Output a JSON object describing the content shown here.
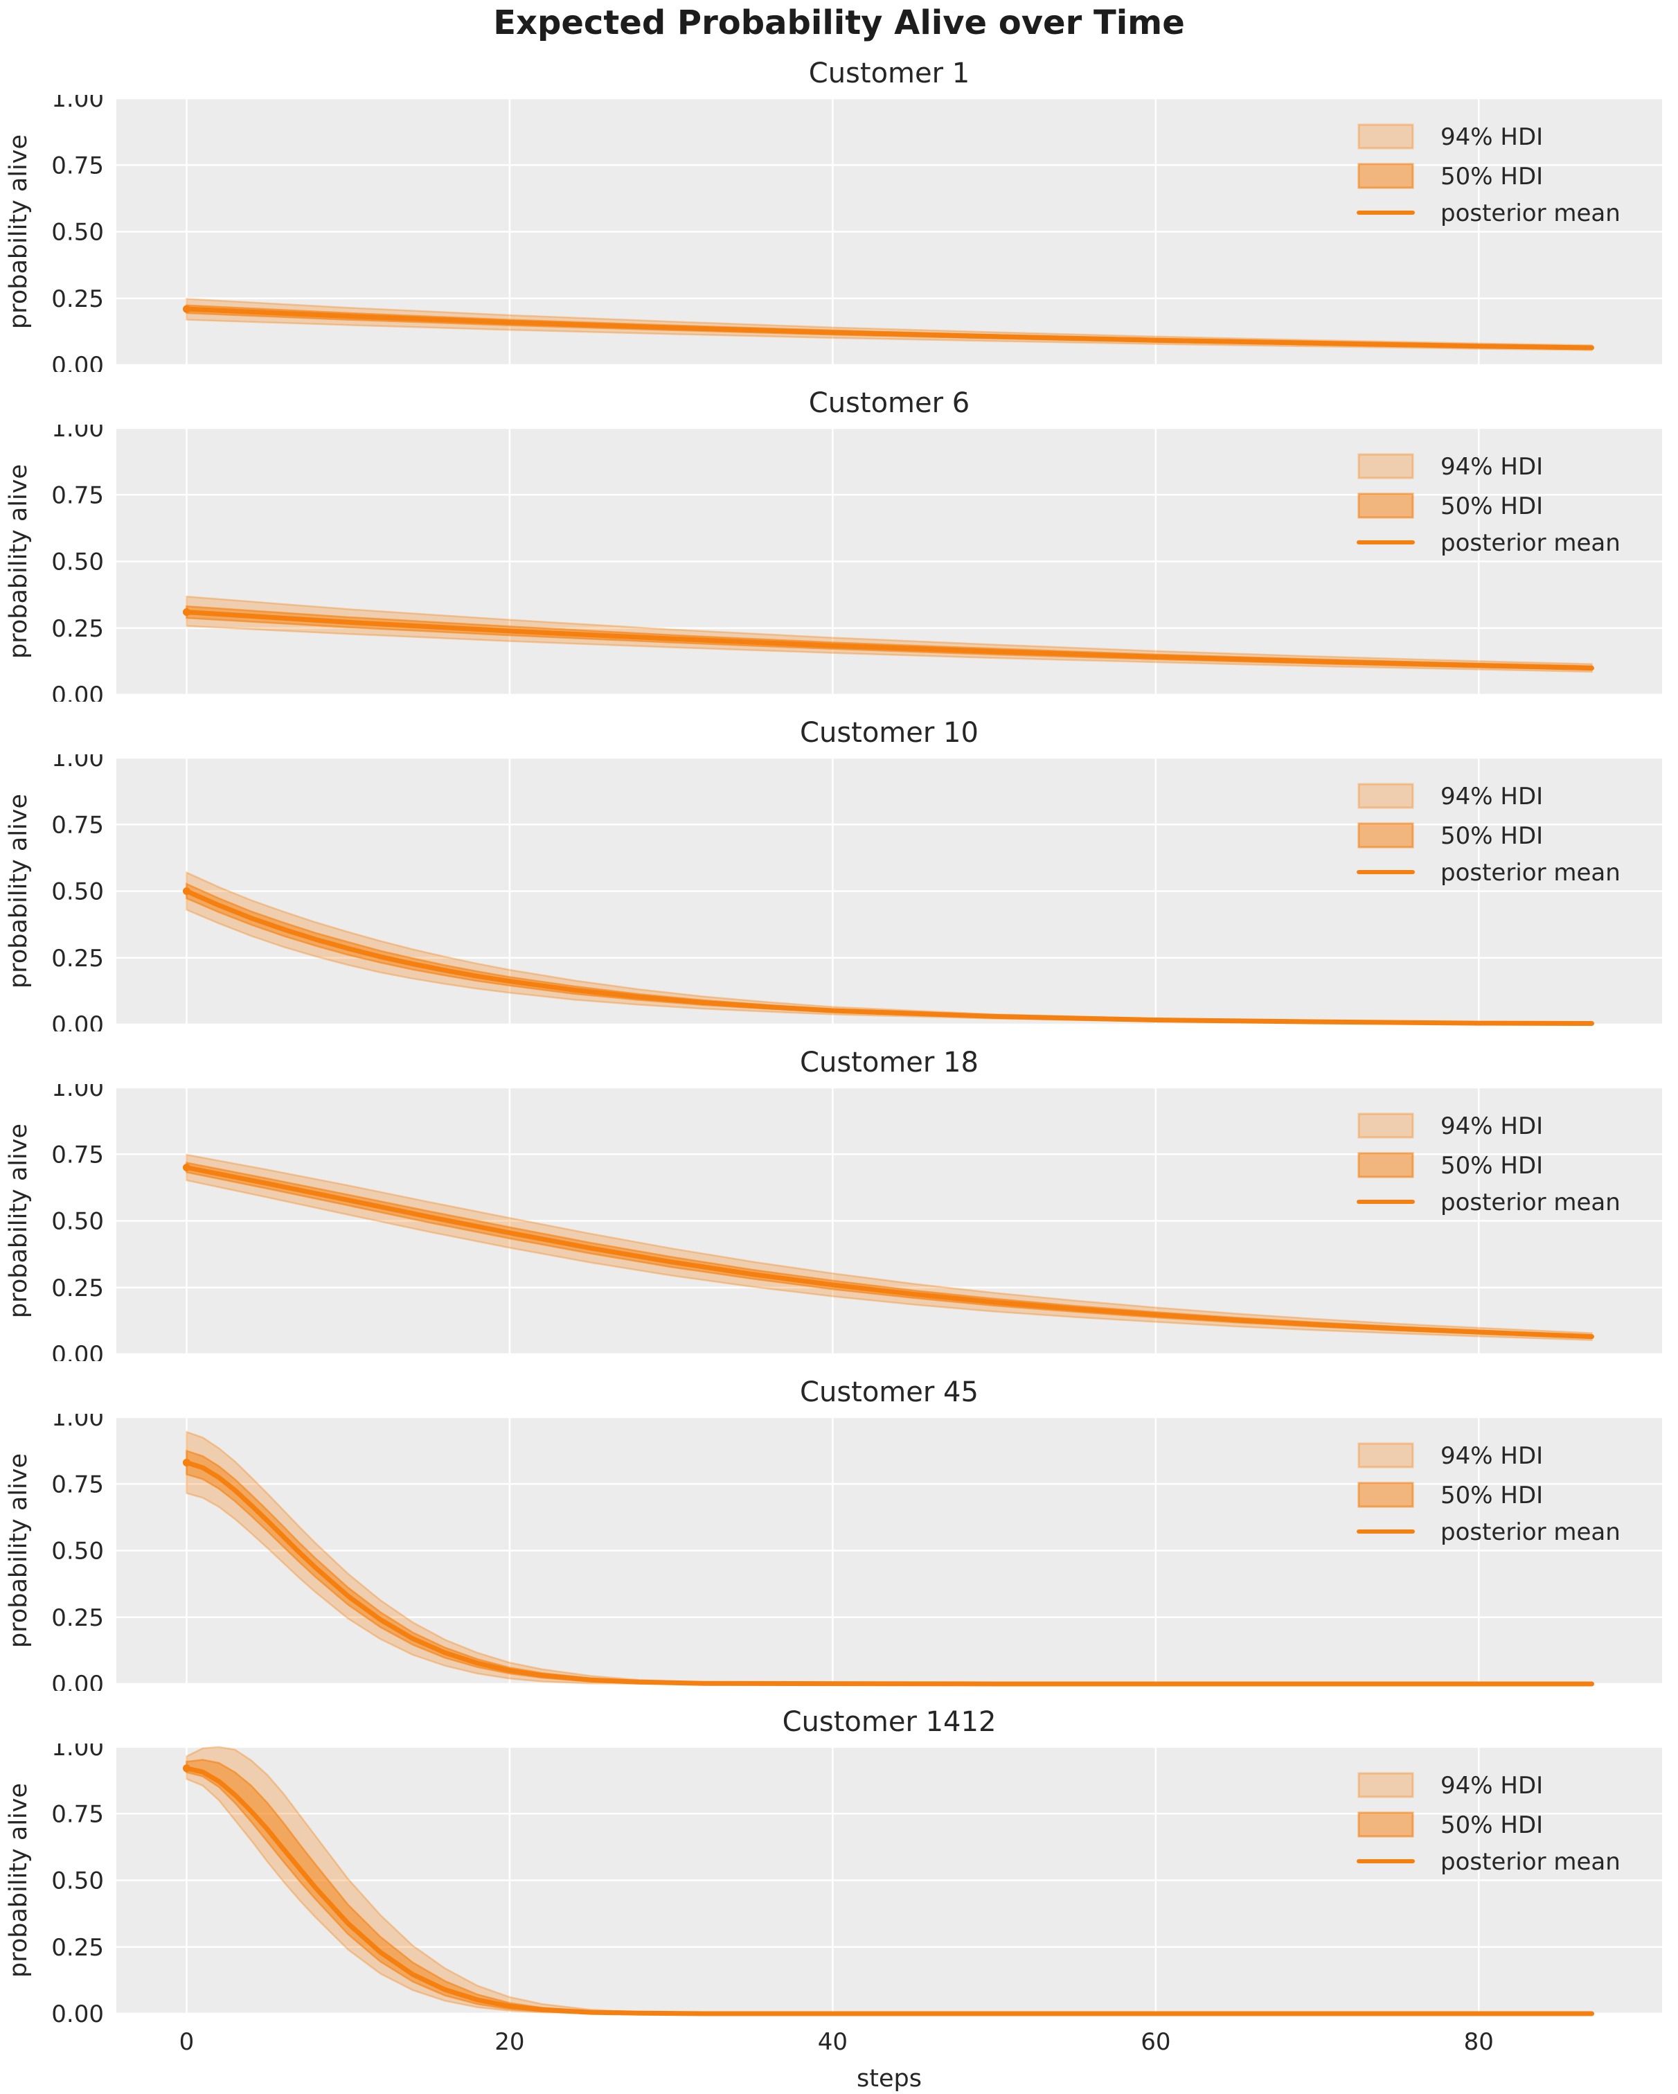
{
  "figure": {
    "title": "Expected Probability Alive over Time",
    "xlabel": "steps",
    "ylabel": "probability alive",
    "x_ticks": [
      0,
      20,
      40,
      60,
      80
    ],
    "y_ticks": [
      {
        "value": 0.0,
        "label": "0.00"
      },
      {
        "value": 0.25,
        "label": "0.25"
      },
      {
        "value": 0.5,
        "label": "0.50"
      },
      {
        "value": 0.75,
        "label": "0.75"
      },
      {
        "value": 1.0,
        "label": "1.00"
      }
    ],
    "xlim": [
      -4.35,
      91.35
    ],
    "ylim": [
      0,
      1
    ],
    "legend": {
      "hdi94_label": "94% HDI",
      "hdi50_label": "50% HDI",
      "mean_label": "posterior mean"
    },
    "colors": {
      "posterior_mean": "#f5800f",
      "hdi94_fill": "rgba(245,128,15,0.28)",
      "hdi94_edge": "rgba(245,128,15,0.35)",
      "hdi50_fill": "rgba(245,128,15,0.50)",
      "hdi50_edge": "rgba(245,128,15,0.60)",
      "plot_bg": "#ececec",
      "grid": "#ffffff",
      "text": "#262626"
    }
  },
  "chart_data": [
    {
      "type": "line",
      "title": "Customer 1",
      "x": [
        0,
        10,
        20,
        30,
        40,
        50,
        60,
        70,
        80,
        87
      ],
      "posterior_mean": [
        0.21,
        0.183,
        0.16,
        0.14,
        0.122,
        0.107,
        0.093,
        0.082,
        0.071,
        0.065
      ],
      "hdi94_lower": [
        0.17,
        0.15,
        0.132,
        0.116,
        0.102,
        0.09,
        0.079,
        0.07,
        0.061,
        0.056
      ],
      "hdi94_upper": [
        0.248,
        0.215,
        0.187,
        0.163,
        0.141,
        0.123,
        0.107,
        0.093,
        0.081,
        0.074
      ],
      "hdi50_lower": [
        0.195,
        0.17,
        0.149,
        0.131,
        0.114,
        0.1,
        0.087,
        0.077,
        0.067,
        0.061
      ],
      "hdi50_upper": [
        0.224,
        0.195,
        0.17,
        0.149,
        0.13,
        0.113,
        0.099,
        0.087,
        0.075,
        0.069
      ]
    },
    {
      "type": "line",
      "title": "Customer 6",
      "x": [
        0,
        10,
        20,
        30,
        40,
        50,
        60,
        70,
        80,
        87
      ],
      "posterior_mean": [
        0.31,
        0.272,
        0.239,
        0.21,
        0.184,
        0.162,
        0.142,
        0.125,
        0.11,
        0.1
      ],
      "hdi94_lower": [
        0.258,
        0.228,
        0.201,
        0.178,
        0.157,
        0.138,
        0.122,
        0.107,
        0.095,
        0.086
      ],
      "hdi94_upper": [
        0.368,
        0.321,
        0.281,
        0.245,
        0.214,
        0.188,
        0.164,
        0.144,
        0.126,
        0.115
      ],
      "hdi50_lower": [
        0.288,
        0.253,
        0.223,
        0.196,
        0.172,
        0.151,
        0.133,
        0.117,
        0.103,
        0.094
      ],
      "hdi50_upper": [
        0.332,
        0.291,
        0.256,
        0.224,
        0.196,
        0.173,
        0.151,
        0.133,
        0.117,
        0.107
      ]
    },
    {
      "type": "line",
      "title": "Customer 10",
      "x": [
        0,
        2,
        4,
        6,
        8,
        10,
        12,
        14,
        16,
        18,
        20,
        24,
        28,
        32,
        36,
        40,
        50,
        60,
        70,
        80,
        87
      ],
      "posterior_mean": [
        0.5,
        0.447,
        0.399,
        0.357,
        0.319,
        0.285,
        0.254,
        0.227,
        0.203,
        0.181,
        0.162,
        0.129,
        0.103,
        0.082,
        0.066,
        0.052,
        0.03,
        0.017,
        0.01,
        0.005,
        0.004
      ],
      "hdi94_lower": [
        0.43,
        0.379,
        0.332,
        0.291,
        0.255,
        0.223,
        0.195,
        0.172,
        0.152,
        0.134,
        0.119,
        0.093,
        0.074,
        0.059,
        0.048,
        0.038,
        0.022,
        0.012,
        0.007,
        0.003,
        0.002
      ],
      "hdi94_upper": [
        0.57,
        0.515,
        0.466,
        0.423,
        0.383,
        0.347,
        0.313,
        0.282,
        0.254,
        0.228,
        0.205,
        0.165,
        0.132,
        0.105,
        0.084,
        0.066,
        0.038,
        0.022,
        0.013,
        0.007,
        0.006
      ],
      "hdi50_lower": [
        0.473,
        0.421,
        0.374,
        0.332,
        0.295,
        0.261,
        0.232,
        0.206,
        0.184,
        0.163,
        0.146,
        0.115,
        0.092,
        0.073,
        0.059,
        0.047,
        0.027,
        0.015,
        0.009,
        0.004,
        0.003
      ],
      "hdi50_upper": [
        0.527,
        0.473,
        0.424,
        0.382,
        0.343,
        0.309,
        0.276,
        0.248,
        0.222,
        0.199,
        0.178,
        0.143,
        0.114,
        0.091,
        0.073,
        0.057,
        0.033,
        0.019,
        0.011,
        0.006,
        0.005
      ]
    },
    {
      "type": "line",
      "title": "Customer 18",
      "x": [
        0,
        5,
        10,
        15,
        20,
        25,
        30,
        35,
        40,
        45,
        50,
        55,
        60,
        65,
        70,
        75,
        80,
        87
      ],
      "posterior_mean": [
        0.7,
        0.64,
        0.578,
        0.515,
        0.455,
        0.398,
        0.346,
        0.3,
        0.26,
        0.225,
        0.195,
        0.17,
        0.148,
        0.128,
        0.111,
        0.096,
        0.083,
        0.066
      ],
      "hdi94_lower": [
        0.652,
        0.588,
        0.523,
        0.459,
        0.399,
        0.344,
        0.295,
        0.253,
        0.217,
        0.186,
        0.16,
        0.139,
        0.121,
        0.104,
        0.09,
        0.078,
        0.067,
        0.053
      ],
      "hdi94_upper": [
        0.748,
        0.692,
        0.633,
        0.571,
        0.511,
        0.452,
        0.397,
        0.347,
        0.303,
        0.264,
        0.23,
        0.201,
        0.175,
        0.152,
        0.132,
        0.114,
        0.099,
        0.079
      ],
      "hdi50_lower": [
        0.682,
        0.621,
        0.558,
        0.494,
        0.434,
        0.378,
        0.327,
        0.283,
        0.244,
        0.211,
        0.182,
        0.159,
        0.138,
        0.119,
        0.103,
        0.089,
        0.077,
        0.061
      ],
      "hdi50_upper": [
        0.718,
        0.659,
        0.598,
        0.536,
        0.476,
        0.418,
        0.365,
        0.317,
        0.276,
        0.239,
        0.208,
        0.181,
        0.158,
        0.137,
        0.119,
        0.103,
        0.089,
        0.071
      ]
    },
    {
      "type": "line",
      "title": "Customer 45",
      "x": [
        0,
        1,
        2,
        3,
        4,
        5,
        6,
        7,
        8,
        10,
        12,
        14,
        16,
        18,
        20,
        22,
        25,
        28,
        32,
        40,
        50,
        60,
        70,
        80,
        87
      ],
      "posterior_mean": [
        0.83,
        0.811,
        0.774,
        0.726,
        0.67,
        0.612,
        0.552,
        0.492,
        0.435,
        0.329,
        0.241,
        0.17,
        0.117,
        0.078,
        0.05,
        0.032,
        0.015,
        0.007,
        0.002,
        0.001,
        0.0,
        0.0,
        0.0,
        0.0,
        0.0
      ],
      "hdi94_lower": [
        0.715,
        0.698,
        0.664,
        0.618,
        0.565,
        0.51,
        0.453,
        0.396,
        0.343,
        0.245,
        0.168,
        0.109,
        0.068,
        0.039,
        0.02,
        0.009,
        0.002,
        0.001,
        0.0,
        0.0,
        0.0,
        0.0,
        0.0,
        0.0,
        0.0
      ],
      "hdi94_upper": [
        0.945,
        0.924,
        0.884,
        0.834,
        0.775,
        0.714,
        0.651,
        0.588,
        0.527,
        0.413,
        0.314,
        0.231,
        0.166,
        0.117,
        0.08,
        0.055,
        0.03,
        0.015,
        0.006,
        0.002,
        0.001,
        0.001,
        0.0,
        0.0,
        0.0
      ],
      "hdi50_lower": [
        0.786,
        0.768,
        0.732,
        0.685,
        0.63,
        0.573,
        0.514,
        0.456,
        0.4,
        0.297,
        0.213,
        0.147,
        0.098,
        0.063,
        0.039,
        0.023,
        0.009,
        0.004,
        0.001,
        0.0,
        0.0,
        0.0,
        0.0,
        0.0,
        0.0
      ],
      "hdi50_upper": [
        0.874,
        0.854,
        0.816,
        0.767,
        0.71,
        0.651,
        0.59,
        0.528,
        0.47,
        0.361,
        0.269,
        0.193,
        0.136,
        0.093,
        0.061,
        0.041,
        0.021,
        0.01,
        0.004,
        0.001,
        0.0,
        0.0,
        0.0,
        0.0,
        0.0
      ]
    },
    {
      "type": "line",
      "title": "Customer 1412",
      "x": [
        0,
        1,
        2,
        3,
        4,
        5,
        6,
        7,
        8,
        10,
        12,
        14,
        16,
        18,
        20,
        22,
        25,
        28,
        32,
        40,
        50,
        60,
        70,
        80,
        87
      ],
      "posterior_mean": [
        0.92,
        0.906,
        0.871,
        0.82,
        0.759,
        0.691,
        0.617,
        0.544,
        0.471,
        0.338,
        0.23,
        0.147,
        0.09,
        0.052,
        0.028,
        0.015,
        0.005,
        0.002,
        0.0,
        0.0,
        0.0,
        0.0,
        0.0,
        0.0,
        0.0
      ],
      "hdi94_lower": [
        0.88,
        0.855,
        0.8,
        0.725,
        0.65,
        0.57,
        0.495,
        0.425,
        0.36,
        0.24,
        0.15,
        0.088,
        0.048,
        0.024,
        0.011,
        0.005,
        0.001,
        0.0,
        0.0,
        0.0,
        0.0,
        0.0,
        0.0,
        0.0,
        0.0
      ],
      "hdi94_upper": [
        0.965,
        0.995,
        1.0,
        0.99,
        0.95,
        0.895,
        0.825,
        0.745,
        0.665,
        0.505,
        0.37,
        0.255,
        0.17,
        0.105,
        0.062,
        0.036,
        0.015,
        0.006,
        0.001,
        0.0,
        0.0,
        0.0,
        0.0,
        0.0,
        0.0
      ],
      "hdi50_lower": [
        0.905,
        0.89,
        0.85,
        0.79,
        0.72,
        0.645,
        0.57,
        0.497,
        0.428,
        0.298,
        0.195,
        0.12,
        0.068,
        0.036,
        0.017,
        0.008,
        0.002,
        0.0,
        0.0,
        0.0,
        0.0,
        0.0,
        0.0,
        0.0,
        0.0
      ],
      "hdi50_upper": [
        0.945,
        0.952,
        0.94,
        0.905,
        0.855,
        0.79,
        0.715,
        0.635,
        0.558,
        0.408,
        0.288,
        0.192,
        0.122,
        0.072,
        0.04,
        0.022,
        0.008,
        0.003,
        0.001,
        0.0,
        0.0,
        0.0,
        0.0,
        0.0,
        0.0
      ]
    }
  ]
}
